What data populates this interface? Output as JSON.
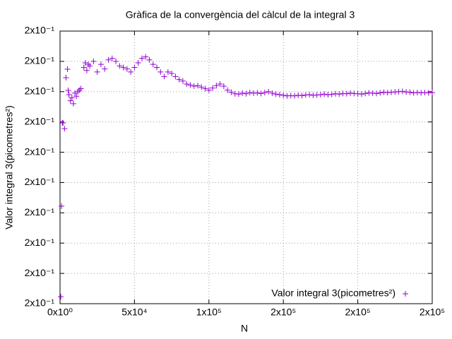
{
  "chart_data": {
    "type": "scatter",
    "title": "Gràfica de la convergència del càlcul de la integral 3",
    "xlabel": "N",
    "ylabel": "Valor integral 3(picometres²)",
    "legend": "bottom right",
    "grid": true,
    "xlim": [
      0,
      250000
    ],
    "ylim": [
      0.17,
      0.26
    ],
    "xticks": [
      {
        "value": 0,
        "label": "0x10⁰"
      },
      {
        "value": 50000,
        "label": "5x10⁴"
      },
      {
        "value": 100000,
        "label": "1x10⁵"
      },
      {
        "value": 150000,
        "label": "2x10⁵"
      },
      {
        "value": 200000,
        "label": "2x10⁵"
      },
      {
        "value": 250000,
        "label": "2x10⁵"
      }
    ],
    "yticks": [
      {
        "value": 0.17,
        "label": "2x10⁻¹"
      },
      {
        "value": 0.18,
        "label": "2x10⁻¹"
      },
      {
        "value": 0.19,
        "label": "2x10⁻¹"
      },
      {
        "value": 0.2,
        "label": "2x10⁻¹"
      },
      {
        "value": 0.21,
        "label": "2x10⁻¹"
      },
      {
        "value": 0.22,
        "label": "2x10⁻¹"
      },
      {
        "value": 0.23,
        "label": "2x10⁻¹"
      },
      {
        "value": 0.24,
        "label": "2x10⁻¹"
      },
      {
        "value": 0.25,
        "label": "2x10⁻¹"
      },
      {
        "value": 0.26,
        "label": "2x10⁻¹"
      }
    ],
    "x": [
      500,
      1000,
      1500,
      2000,
      3000,
      4000,
      5000,
      5500,
      6000,
      7000,
      8000,
      9000,
      10000,
      11000,
      12000,
      13000,
      14000,
      16000,
      17000,
      18000,
      19000,
      20000,
      22500,
      25000,
      27500,
      30000,
      32500,
      35000,
      37500,
      40000,
      42500,
      45000,
      47500,
      50000,
      52500,
      55000,
      57500,
      60000,
      62500,
      65000,
      67500,
      70000,
      72500,
      75000,
      77500,
      80000,
      82500,
      85000,
      87500,
      90000,
      92500,
      95000,
      97500,
      100000,
      102500,
      105000,
      107500,
      110000,
      112500,
      115000,
      117500,
      120000,
      122500,
      125000,
      127500,
      130000,
      132500,
      135000,
      137500,
      140000,
      142500,
      145000,
      147500,
      150000,
      152500,
      155000,
      157500,
      160000,
      162500,
      165000,
      167500,
      170000,
      172500,
      175000,
      177500,
      180000,
      182500,
      185000,
      187500,
      190000,
      192500,
      195000,
      197500,
      200000,
      202500,
      205000,
      207500,
      210000,
      212500,
      215000,
      217500,
      220000,
      222500,
      225000,
      227500,
      230000,
      232500,
      235000,
      237500,
      240000,
      242500,
      245000,
      247500,
      250000
    ],
    "series": [
      {
        "name": "Valor integral 3(picometres²)",
        "color": "#9400d3",
        "values": [
          0.1723,
          0.2022,
          0.2297,
          0.2297,
          0.2278,
          0.2446,
          0.2474,
          0.2404,
          0.239,
          0.237,
          0.238,
          0.236,
          0.2395,
          0.2385,
          0.24,
          0.2405,
          0.241,
          0.248,
          0.2495,
          0.247,
          0.249,
          0.2485,
          0.25,
          0.2465,
          0.249,
          0.2475,
          0.2505,
          0.251,
          0.25,
          0.2485,
          0.248,
          0.2475,
          0.2465,
          0.248,
          0.2495,
          0.251,
          0.2515,
          0.2505,
          0.249,
          0.248,
          0.2465,
          0.245,
          0.2465,
          0.246,
          0.245,
          0.244,
          0.2435,
          0.2425,
          0.2422,
          0.2418,
          0.242,
          0.2415,
          0.241,
          0.2405,
          0.2412,
          0.242,
          0.2425,
          0.2418,
          0.2405,
          0.2398,
          0.2393,
          0.2392,
          0.2395,
          0.2393,
          0.2397,
          0.2395,
          0.2396,
          0.2394,
          0.2397,
          0.24,
          0.2395,
          0.2392,
          0.239,
          0.2388,
          0.2386,
          0.2387,
          0.2386,
          0.2388,
          0.2387,
          0.2389,
          0.239,
          0.2388,
          0.2389,
          0.239,
          0.2392,
          0.239,
          0.2391,
          0.2393,
          0.2392,
          0.2394,
          0.2393,
          0.2395,
          0.2394,
          0.2393,
          0.2392,
          0.2394,
          0.2396,
          0.2395,
          0.2394,
          0.2396,
          0.2398,
          0.2397,
          0.2398,
          0.2399,
          0.24,
          0.2401,
          0.2399,
          0.2398,
          0.2396,
          0.2397,
          0.2396,
          0.2397,
          0.2396,
          0.2397
        ]
      }
    ]
  }
}
